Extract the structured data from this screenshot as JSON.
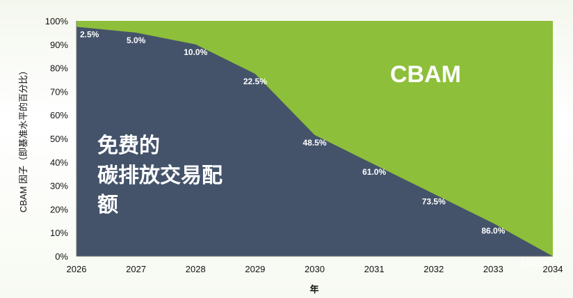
{
  "chart_data": {
    "type": "area",
    "xlabel": "年",
    "ylabel": "CBAM 因子（即基准水平的百分比）",
    "x": [
      2026,
      2027,
      2028,
      2029,
      2030,
      2031,
      2032,
      2033,
      2034
    ],
    "xlim": [
      2026,
      2034
    ],
    "ylim": [
      0,
      100
    ],
    "y_ticks": [
      "0%",
      "10%",
      "20%",
      "30%",
      "40%",
      "50%",
      "60%",
      "70%",
      "80%",
      "90%",
      "100%"
    ],
    "series": [
      {
        "name": "免费的碳排放交易配额",
        "values": [
          97.5,
          95.0,
          90.0,
          77.5,
          51.5,
          39.0,
          26.5,
          14.0,
          0.0
        ],
        "color": "#44536a"
      },
      {
        "name": "CBAM",
        "values": [
          2.5,
          5.0,
          10.0,
          22.5,
          48.5,
          61.0,
          73.5,
          86.0,
          100.0
        ],
        "color": "#8dbf3a"
      }
    ],
    "data_labels": [
      "2.5%",
      "5.0%",
      "10.0%",
      "22.5%",
      "48.5%",
      "61.0%",
      "73.5%",
      "86.0%",
      "100.0%"
    ],
    "annotations": {
      "cbam": "CBAM",
      "free_lines": [
        "免费的",
        "碳排放交易配",
        "额"
      ]
    },
    "stacked": true,
    "grid": false
  }
}
